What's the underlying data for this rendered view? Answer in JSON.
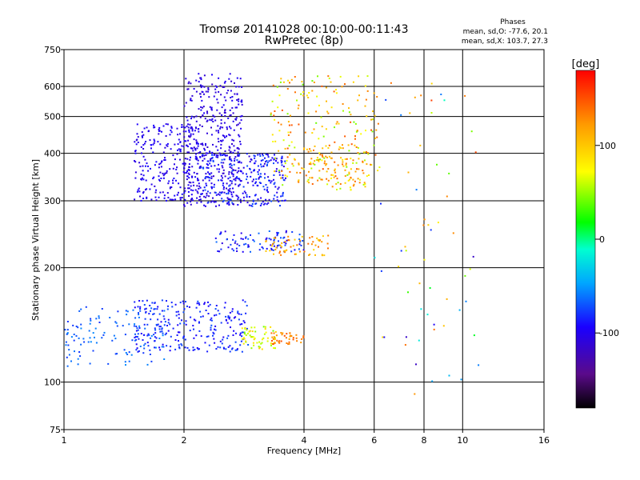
{
  "chart_data": {
    "type": "scatter",
    "title": "Tromsø 20141028 00:10:00-00:11:43",
    "subtitle": "RwPretec (8p)",
    "stats": {
      "heading": "Phases",
      "line_o": "mean, sd,O: -77.6, 20.1",
      "line_x": "mean, sd,X: 103.7, 27.3"
    },
    "xlabel": "Frequency [MHz]",
    "ylabel": "Stationary phase Virtual Height [km]",
    "x_scale": "log",
    "y_scale": "log",
    "xlim": [
      1,
      16
    ],
    "ylim": [
      75,
      750
    ],
    "x_ticks": [
      1,
      2,
      4,
      6,
      8,
      10,
      16
    ],
    "x_tick_labels": [
      "1",
      "2",
      "4",
      "6",
      "8",
      "10",
      "16"
    ],
    "y_ticks": [
      75,
      100,
      200,
      300,
      400,
      500,
      600,
      750
    ],
    "y_tick_labels": [
      "75",
      "100",
      "200",
      "300",
      "400",
      "500",
      "600",
      "750"
    ],
    "grid": true,
    "colorbar": {
      "label": "[deg]",
      "range": [
        -180,
        180
      ],
      "ticks": [
        100,
        0,
        -100
      ],
      "tick_labels": [
        "100",
        "0",
        "-100"
      ],
      "colormap": "rainbow"
    },
    "clusters": [
      {
        "x": [
          2.0,
          2.8
        ],
        "y": [
          290,
          650
        ],
        "phase": [
          -115,
          -95
        ],
        "density": 380
      },
      {
        "x": [
          1.5,
          2.2
        ],
        "y": [
          300,
          480
        ],
        "phase": [
          -110,
          -90
        ],
        "density": 260
      },
      {
        "x": [
          2.2,
          3.6
        ],
        "y": [
          290,
          400
        ],
        "phase": [
          -110,
          -70
        ],
        "density": 300
      },
      {
        "x": [
          3.3,
          6.2
        ],
        "y": [
          320,
          640
        ],
        "phase": [
          40,
          150
        ],
        "density": 230
      },
      {
        "x": [
          3.8,
          5.8
        ],
        "y": [
          330,
          420
        ],
        "phase": [
          90,
          140
        ],
        "density": 80
      },
      {
        "x": [
          2.4,
          4.0
        ],
        "y": [
          220,
          250
        ],
        "phase": [
          -110,
          -60
        ],
        "density": 90
      },
      {
        "x": [
          3.2,
          4.6
        ],
        "y": [
          215,
          245
        ],
        "phase": [
          90,
          140
        ],
        "density": 60
      },
      {
        "x": [
          1.5,
          2.9
        ],
        "y": [
          120,
          165
        ],
        "phase": [
          -100,
          -70
        ],
        "density": 260
      },
      {
        "x": [
          1.0,
          1.8
        ],
        "y": [
          110,
          160
        ],
        "phase": [
          -80,
          -55
        ],
        "density": 120
      },
      {
        "x": [
          2.8,
          3.4
        ],
        "y": [
          122,
          140
        ],
        "phase": [
          40,
          100
        ],
        "density": 60
      },
      {
        "x": [
          3.3,
          4.0
        ],
        "y": [
          125,
          135
        ],
        "phase": [
          120,
          150
        ],
        "density": 40
      },
      {
        "x": [
          6.0,
          11.0
        ],
        "y": [
          90,
          640
        ],
        "phase": [
          -120,
          160
        ],
        "density": 60
      }
    ]
  }
}
